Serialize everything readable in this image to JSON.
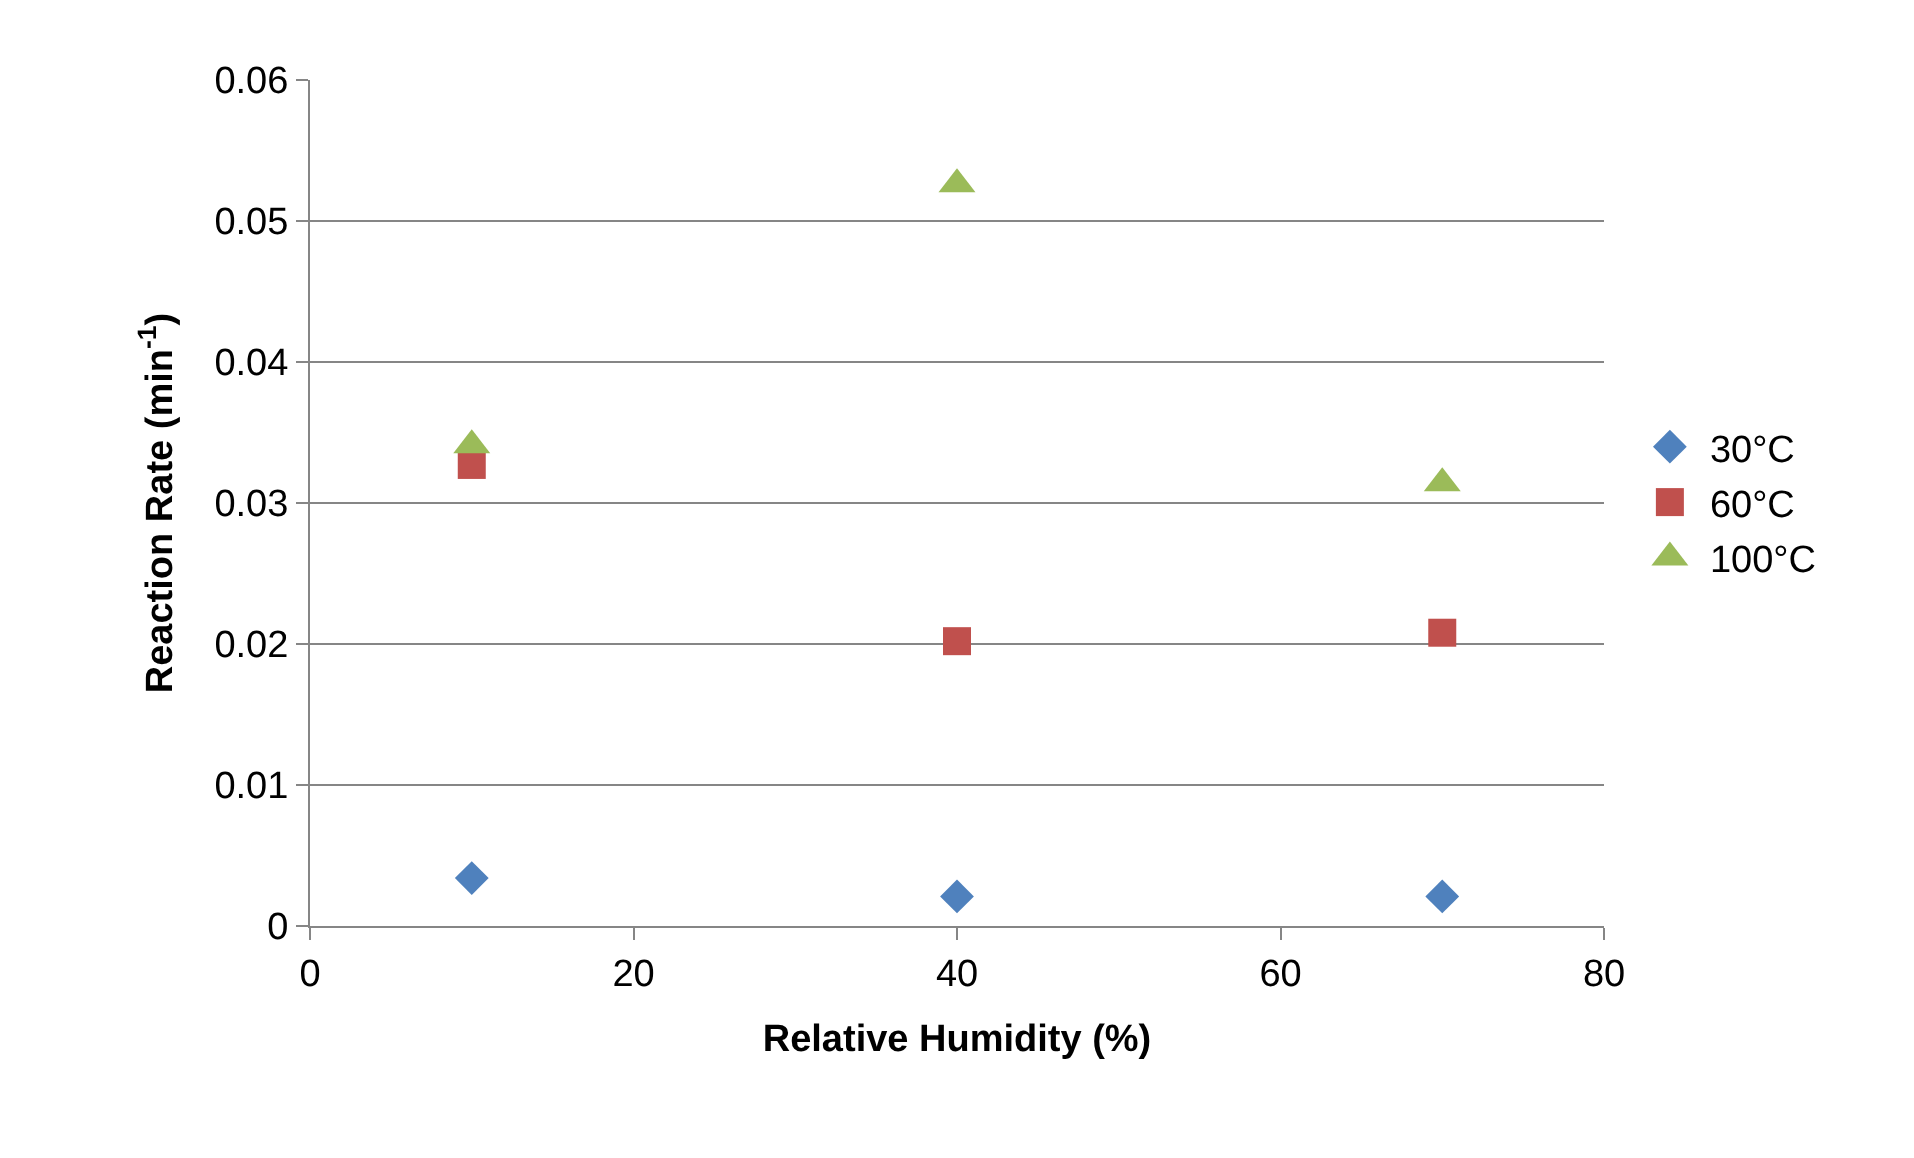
{
  "chart_data": {
    "type": "scatter",
    "xlabel": "Relative Humidity (%)",
    "ylabel": "Reaction Rate (min$^{-1}$)",
    "xlim": [
      0,
      80
    ],
    "xticks": [
      0,
      20,
      40,
      60,
      80
    ],
    "ylim": [
      0,
      0.06
    ],
    "yticks": [
      0,
      0.01,
      0.02,
      0.03,
      0.04,
      0.05,
      0.06
    ],
    "grid": "y",
    "legend": "right",
    "series": [
      {
        "name": "30°C",
        "color": "#4f81bd",
        "marker": "diamond",
        "x": [
          10,
          40,
          70
        ],
        "values": [
          0.0034,
          0.0021,
          0.0021
        ]
      },
      {
        "name": "60°C",
        "color": "#c0504d",
        "marker": "square",
        "x": [
          10,
          40,
          70
        ],
        "values": [
          0.0327,
          0.0202,
          0.0208
        ]
      },
      {
        "name": "100°C",
        "color": "#9bbb59",
        "marker": "triangle",
        "x": [
          10,
          40,
          70
        ],
        "values": [
          0.0341,
          0.0526,
          0.0314
        ]
      }
    ]
  }
}
